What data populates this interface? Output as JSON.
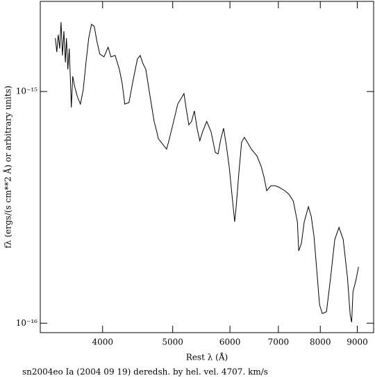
{
  "chart_data": {
    "type": "line",
    "xlabel": "Rest λ (Å)",
    "ylabel": "fλ (ergs/(s cm**2 Å) or arbitrary units)",
    "caption": "sn2004eo Ia (2004 09 19) deredsh. by hel. vel.  4707. km/s",
    "xscale": "log",
    "yscale": "log",
    "xlim": [
      3280,
      9480
    ],
    "ylim": [
      9.1e-17,
      2.45e-15
    ],
    "xticks": [
      4000,
      5000,
      6000,
      7000,
      8000,
      9000
    ],
    "yticks": [
      {
        "value": 1e-16,
        "label": "10⁻¹⁶"
      },
      {
        "value": 1e-15,
        "label": "10⁻¹⁵"
      }
    ],
    "x": [
      3441,
      3457,
      3473,
      3489,
      3504,
      3520,
      3536,
      3553,
      3565,
      3581,
      3597,
      3613,
      3621,
      3637,
      3660,
      3693,
      3727,
      3760,
      3794,
      3827,
      3861,
      3895,
      3929,
      3965,
      4018,
      4071,
      4107,
      4163,
      4219,
      4257,
      4293,
      4350,
      4409,
      4469,
      4509,
      4549,
      4590,
      4630,
      4671,
      4713,
      4754,
      4776,
      4818,
      4861,
      4904,
      4948,
      5015,
      5081,
      5149,
      5183,
      5217,
      5264,
      5310,
      5357,
      5404,
      5451,
      5499,
      5572,
      5650,
      5727,
      5778,
      5829,
      5880,
      5932,
      5985,
      6038,
      6091,
      6118,
      6172,
      6227,
      6282,
      6340,
      6423,
      6539,
      6627,
      6686,
      6745,
      6836,
      6928,
      7019,
      7145,
      7240,
      7340,
      7437,
      7469,
      7535,
      7601,
      7703,
      7772,
      7840,
      7911,
      7981,
      8052,
      8159,
      8268,
      8378,
      8491,
      8605,
      8722,
      8800,
      8840,
      8878,
      8956,
      9036
    ],
    "series": [
      {
        "color": "#000000",
        "values": [
          1.7e-15,
          1.481e-15,
          1.76e-15,
          1.533e-15,
          1.993e-15,
          1.431e-15,
          1.822e-15,
          1.336e-15,
          1.7e-15,
          1.247e-15,
          1.533e-15,
          1.049e-15,
          8.53e-16,
          1.164e-15,
          1.049e-15,
          9.46e-16,
          8.83e-16,
          1.014e-15,
          1.336e-15,
          1.7e-15,
          1.951e-15,
          1.911e-15,
          1.643e-15,
          1.451e-15,
          1.412e-15,
          1.554e-15,
          1.412e-15,
          1.431e-15,
          1.247e-15,
          1.086e-15,
          8.83e-16,
          8.96e-16,
          1.124e-15,
          1.382e-15,
          1.431e-15,
          1.318e-15,
          1.247e-15,
          1.049e-15,
          8.83e-16,
          7.43e-16,
          6.7e-16,
          6.26e-16,
          6.05e-16,
          5.84e-16,
          5.64e-16,
          6.26e-16,
          7.43e-16,
          8.83e-16,
          9.46e-16,
          9.8e-16,
          8.53e-16,
          7.18e-16,
          7.43e-16,
          8.25e-16,
          6.94e-16,
          6.13e-16,
          6.7e-16,
          7.43e-16,
          6.7e-16,
          5.45e-16,
          5.38e-16,
          6.26e-16,
          6.94e-16,
          5.84e-16,
          4.75e-16,
          3.6e-16,
          2.74e-16,
          3.14e-16,
          4.43e-16,
          6.05e-16,
          6.34e-16,
          6.05e-16,
          5.64e-16,
          5.27e-16,
          4.75e-16,
          4.28e-16,
          3.73e-16,
          3.92e-16,
          3.92e-16,
          3.86e-16,
          3.73e-16,
          3.6e-16,
          3.37e-16,
          2.74e-16,
          2.05e-16,
          2.22e-16,
          2.74e-16,
          3.18e-16,
          2.89e-16,
          2.38e-16,
          1.69e-16,
          1.2e-16,
          1.1e-16,
          1.12e-16,
          1.58e-16,
          2.3e-16,
          2.59e-16,
          2.3e-16,
          1.58e-16,
          1.08e-16,
          1.01e-16,
          1.37e-16,
          1.52e-16,
          1.75e-16
        ]
      }
    ]
  }
}
